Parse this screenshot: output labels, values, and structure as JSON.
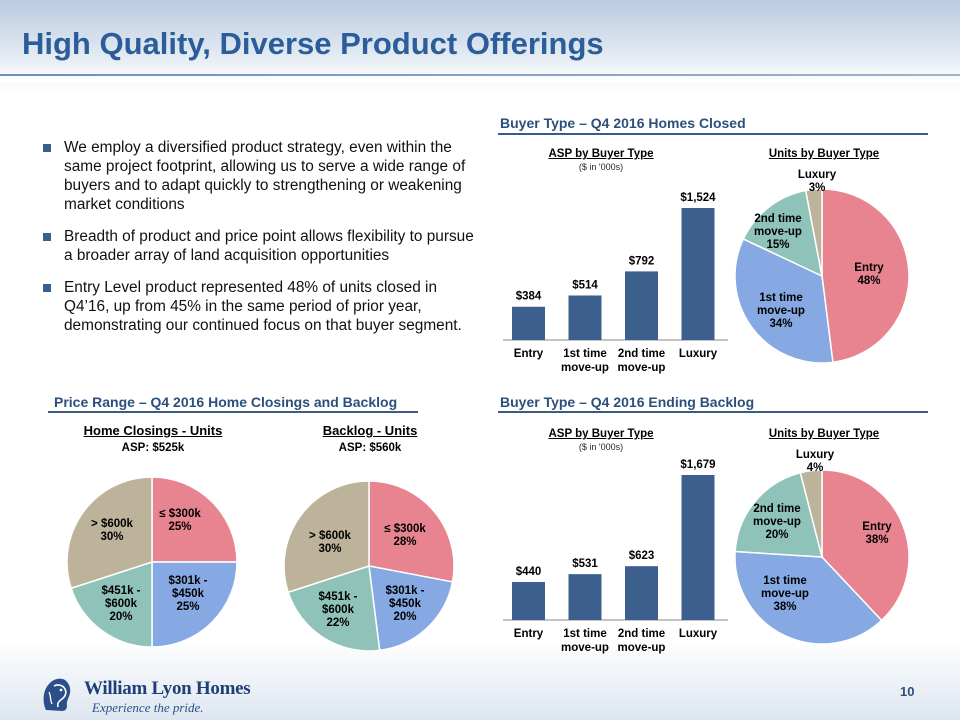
{
  "title": "High Quality, Diverse Product Offerings",
  "bullets": [
    "We employ a diversified product strategy, even within the same project footprint, allowing us to serve a wide range of buyers and to adapt quickly to strengthening or weakening market conditions",
    "Breadth of product and price point allows flexibility to pursue a broader array of land acquisition opportunities",
    "Entry Level product represented 48% of units closed in Q4’16, up from 45% in the same period of prior year, demonstrating our continued focus on that buyer segment."
  ],
  "sections": {
    "closed": "Buyer Type – Q4 2016 Homes Closed",
    "price_range": "Price Range – Q4 2016 Home Closings and Backlog",
    "backlog": "Buyer Type – Q4 2016 Ending Backlog"
  },
  "labels": {
    "asp_by_buyer": "ASP by Buyer Type",
    "asp_units": "($ in '000s)",
    "units_by_buyer": "Units by Buyer Type"
  },
  "colors": {
    "bar": "#3d5f8e",
    "entry": "#e8848f",
    "first": "#86a9e3",
    "second": "#8fc2b8",
    "luxury": "#bcb39a"
  },
  "chart_data": [
    {
      "id": "closed_asp",
      "type": "bar",
      "title": "ASP by Buyer Type",
      "categories": [
        "Entry",
        "1st time move-up",
        "2nd time move-up",
        "Luxury"
      ],
      "values": [
        384,
        514,
        792,
        1524
      ],
      "data_labels": [
        "$384",
        "$514",
        "$792",
        "$1,524"
      ],
      "ylim": [
        0,
        1524
      ]
    },
    {
      "id": "closed_units",
      "type": "pie",
      "title": "Units by Buyer Type",
      "slices": [
        {
          "label": "Entry",
          "value": 48,
          "display": "48%"
        },
        {
          "label": "1st time move-up",
          "value": 34,
          "display": "34%"
        },
        {
          "label": "2nd time move-up",
          "value": 15,
          "display": "15%"
        },
        {
          "label": "Luxury",
          "value": 3,
          "display": "3%"
        }
      ]
    },
    {
      "id": "backlog_asp",
      "type": "bar",
      "title": "ASP by Buyer Type",
      "categories": [
        "Entry",
        "1st time move-up",
        "2nd time move-up",
        "Luxury"
      ],
      "values": [
        440,
        531,
        623,
        1679
      ],
      "data_labels": [
        "$440",
        "$531",
        "$623",
        "$1,679"
      ],
      "ylim": [
        0,
        1679
      ]
    },
    {
      "id": "backlog_units",
      "type": "pie",
      "title": "Units by Buyer Type",
      "slices": [
        {
          "label": "Entry",
          "value": 38,
          "display": "38%"
        },
        {
          "label": "1st time move-up",
          "value": 38,
          "display": "38%"
        },
        {
          "label": "2nd time move-up",
          "value": 20,
          "display": "20%"
        },
        {
          "label": "Luxury",
          "value": 4,
          "display": "4%"
        }
      ]
    },
    {
      "id": "closings_price",
      "type": "pie",
      "title": "Home Closings - Units",
      "subtitle": "ASP: $525k",
      "slices": [
        {
          "label": "≤ $300k",
          "value": 25,
          "display": "25%"
        },
        {
          "label": "$301k - $450k",
          "value": 25,
          "display": "25%"
        },
        {
          "label": "$451k - $600k",
          "value": 20,
          "display": "20%"
        },
        {
          "label": "> $600k",
          "value": 30,
          "display": "30%"
        }
      ]
    },
    {
      "id": "backlog_price",
      "type": "pie",
      "title": "Backlog - Units",
      "subtitle": "ASP: $560k",
      "slices": [
        {
          "label": "≤ $300k",
          "value": 28,
          "display": "28%"
        },
        {
          "label": "$301k - $450k",
          "value": 20,
          "display": "20%"
        },
        {
          "label": "$451k - $600k",
          "value": 22,
          "display": "22%"
        },
        {
          "label": "> $600k",
          "value": 30,
          "display": "30%"
        }
      ]
    }
  ],
  "footer": {
    "company": "William Lyon Homes",
    "tagline": "Experience the pride.",
    "page_number": "10",
    "logo_icon": "lion-head-icon"
  }
}
